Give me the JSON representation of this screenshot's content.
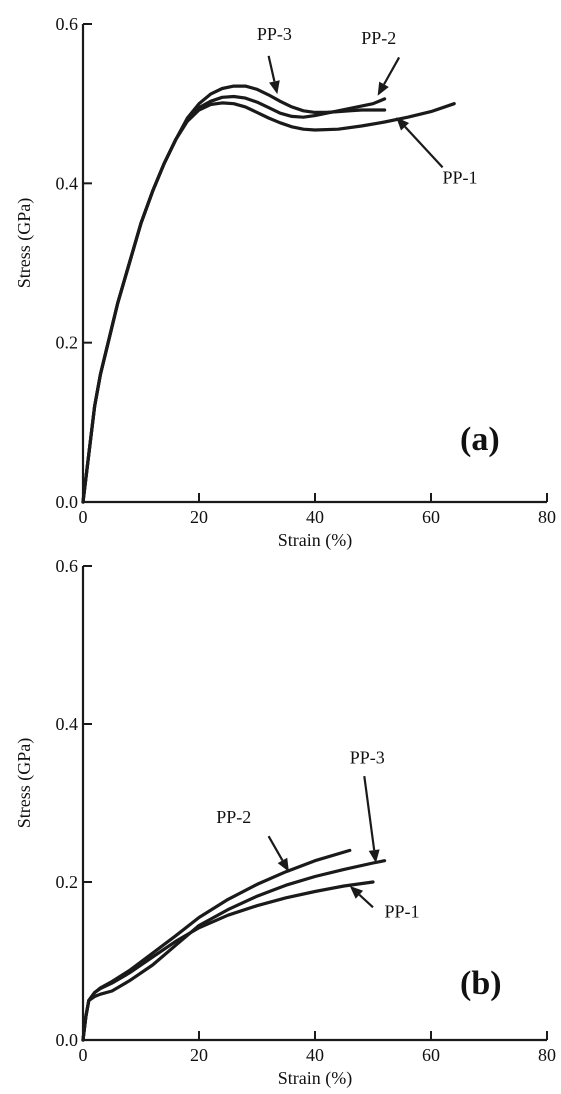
{
  "chart_data": [
    {
      "type": "line",
      "panel": "(a)",
      "xlabel": "Strain (%)",
      "ylabel": "Stress (GPa)",
      "xlim": [
        0,
        80
      ],
      "ylim": [
        0,
        0.6
      ],
      "xticks": [
        0,
        20,
        40,
        60,
        80
      ],
      "yticks": [
        0.0,
        0.2,
        0.4,
        0.6
      ],
      "xtick_labels": [
        "0",
        "20",
        "40",
        "60",
        "80"
      ],
      "ytick_labels": [
        "0.0",
        "0.2",
        "0.4",
        "0.6"
      ],
      "grid": false,
      "series": [
        {
          "name": "PP-1",
          "x": [
            0,
            1,
            2,
            3,
            4,
            6,
            8,
            10,
            12,
            14,
            16,
            18,
            20,
            22,
            24,
            26,
            28,
            30,
            32,
            34,
            36,
            38,
            40,
            44,
            48,
            52,
            56,
            60,
            64
          ],
          "y": [
            0,
            0.06,
            0.12,
            0.16,
            0.19,
            0.25,
            0.3,
            0.35,
            0.39,
            0.425,
            0.455,
            0.478,
            0.492,
            0.499,
            0.501,
            0.5,
            0.496,
            0.489,
            0.482,
            0.476,
            0.471,
            0.468,
            0.467,
            0.468,
            0.472,
            0.477,
            0.483,
            0.49,
            0.5
          ],
          "label_x": 65,
          "label_y": 0.4,
          "arrow_from": [
            62,
            0.42
          ],
          "arrow_to": [
            54,
            0.483
          ]
        },
        {
          "name": "PP-2",
          "x": [
            0,
            1,
            2,
            3,
            4,
            6,
            8,
            10,
            12,
            14,
            16,
            18,
            20,
            22,
            24,
            26,
            28,
            30,
            32,
            34,
            36,
            38,
            40,
            42,
            44,
            46,
            48,
            50,
            52
          ],
          "y": [
            0,
            0.06,
            0.12,
            0.16,
            0.19,
            0.25,
            0.3,
            0.35,
            0.39,
            0.425,
            0.455,
            0.48,
            0.495,
            0.503,
            0.508,
            0.509,
            0.507,
            0.502,
            0.495,
            0.488,
            0.484,
            0.483,
            0.485,
            0.488,
            0.491,
            0.494,
            0.497,
            0.5,
            0.506
          ],
          "label_x": 51,
          "label_y": 0.575,
          "arrow_from": [
            54.5,
            0.558
          ],
          "arrow_to": [
            50.8,
            0.51
          ]
        },
        {
          "name": "PP-3",
          "x": [
            0,
            1,
            2,
            3,
            4,
            6,
            8,
            10,
            12,
            14,
            16,
            18,
            20,
            22,
            24,
            26,
            28,
            30,
            32,
            34,
            36,
            38,
            40,
            42,
            44,
            46,
            48,
            50,
            52
          ],
          "y": [
            0,
            0.06,
            0.12,
            0.16,
            0.19,
            0.25,
            0.3,
            0.35,
            0.39,
            0.425,
            0.455,
            0.482,
            0.5,
            0.512,
            0.519,
            0.522,
            0.522,
            0.518,
            0.511,
            0.503,
            0.496,
            0.491,
            0.489,
            0.489,
            0.49,
            0.491,
            0.492,
            0.492,
            0.492
          ],
          "label_x": 33,
          "label_y": 0.58,
          "arrow_from": [
            32,
            0.56
          ],
          "arrow_to": [
            33.5,
            0.512
          ]
        }
      ]
    },
    {
      "type": "line",
      "panel": "(b)",
      "xlabel": "Strain (%)",
      "ylabel": "Stress (GPa)",
      "xlim": [
        0,
        80
      ],
      "ylim": [
        0,
        0.6
      ],
      "xticks": [
        0,
        20,
        40,
        60,
        80
      ],
      "yticks": [
        0.0,
        0.2,
        0.4,
        0.6
      ],
      "xtick_labels": [
        "0",
        "20",
        "40",
        "60",
        "80"
      ],
      "ytick_labels": [
        "0.0",
        "0.2",
        "0.4",
        "0.6"
      ],
      "grid": false,
      "series": [
        {
          "name": "PP-1",
          "x": [
            0,
            0.5,
            1,
            2,
            3,
            5,
            8,
            12,
            16,
            20,
            25,
            30,
            35,
            40,
            45,
            50
          ],
          "y": [
            0,
            0.03,
            0.05,
            0.06,
            0.065,
            0.072,
            0.085,
            0.105,
            0.125,
            0.142,
            0.158,
            0.17,
            0.18,
            0.188,
            0.195,
            0.2
          ],
          "label_x": 55,
          "label_y": 0.155,
          "arrow_from": [
            50,
            0.168
          ],
          "arrow_to": [
            46,
            0.195
          ]
        },
        {
          "name": "PP-2",
          "x": [
            0,
            0.5,
            1,
            2,
            3,
            5,
            8,
            12,
            16,
            20,
            25,
            30,
            35,
            40,
            46
          ],
          "y": [
            0,
            0.03,
            0.05,
            0.06,
            0.066,
            0.074,
            0.088,
            0.11,
            0.132,
            0.155,
            0.178,
            0.197,
            0.213,
            0.227,
            0.24
          ],
          "label_x": 26,
          "label_y": 0.275,
          "arrow_from": [
            32,
            0.258
          ],
          "arrow_to": [
            35.5,
            0.213
          ]
        },
        {
          "name": "PP-3",
          "x": [
            0,
            0.5,
            1,
            2,
            3,
            5,
            8,
            12,
            16,
            20,
            25,
            30,
            35,
            40,
            45,
            50,
            52
          ],
          "y": [
            0,
            0.03,
            0.05,
            0.055,
            0.058,
            0.062,
            0.075,
            0.095,
            0.12,
            0.145,
            0.165,
            0.182,
            0.196,
            0.207,
            0.216,
            0.224,
            0.227
          ],
          "label_x": 49,
          "label_y": 0.35,
          "arrow_from": [
            48.5,
            0.334
          ],
          "arrow_to": [
            50.5,
            0.224
          ]
        }
      ]
    }
  ]
}
